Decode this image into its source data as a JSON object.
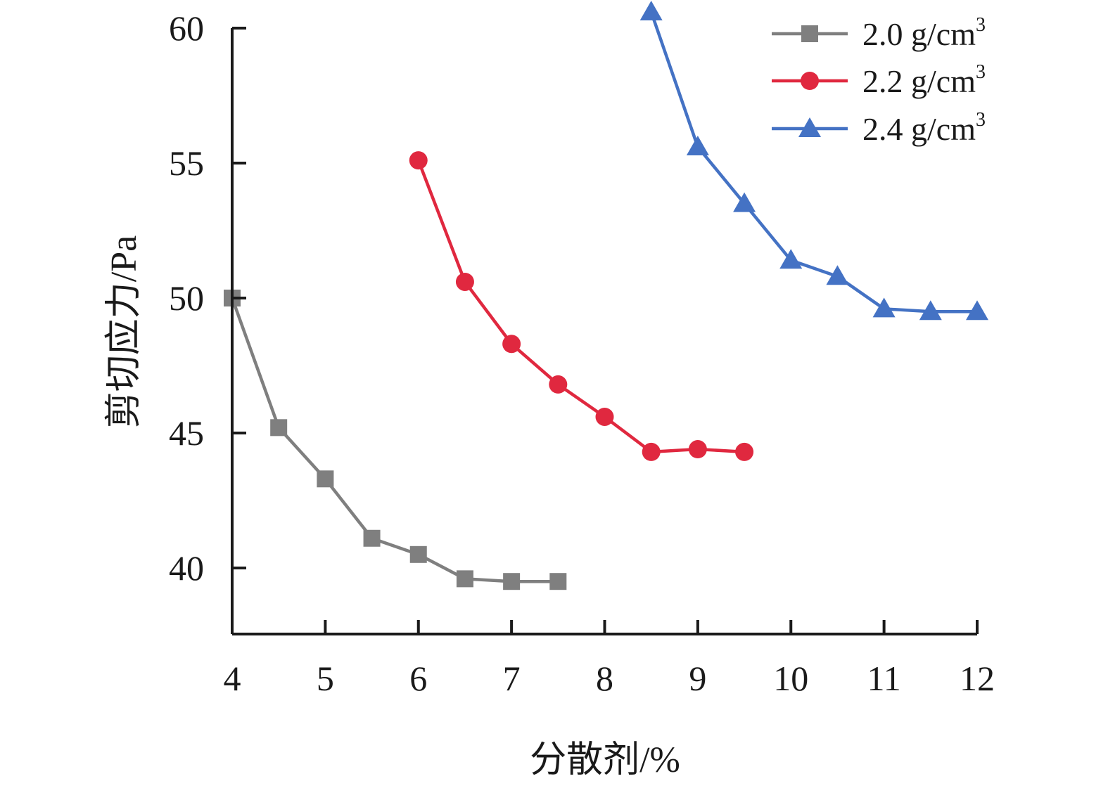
{
  "chart_data": {
    "type": "line",
    "title": "",
    "xlabel": "分散剂/%",
    "ylabel": "剪切应力/Pa",
    "xlim": [
      4,
      12
    ],
    "ylim": [
      37.5,
      60
    ],
    "xticks": [
      4,
      5,
      6,
      7,
      8,
      9,
      10,
      11,
      12
    ],
    "yticks": [
      40,
      45,
      50,
      55,
      60
    ],
    "grid": false,
    "legend_position": "top-right",
    "series": [
      {
        "name": "2.0 g/cm",
        "name_superscript": "3",
        "color": "#7f7f7f",
        "marker": "square",
        "x": [
          4,
          4.5,
          5,
          5.5,
          6,
          6.5,
          7,
          7.5
        ],
        "y": [
          50.0,
          45.2,
          43.3,
          41.1,
          40.5,
          39.6,
          39.5,
          39.5
        ]
      },
      {
        "name": "2.2 g/cm",
        "name_superscript": "3",
        "color": "#e0283f",
        "marker": "circle",
        "x": [
          6,
          6.5,
          7,
          7.5,
          8,
          8.5,
          9,
          9.5
        ],
        "y": [
          55.1,
          50.6,
          48.3,
          46.8,
          45.6,
          44.3,
          44.4,
          44.3
        ]
      },
      {
        "name": "2.4 g/cm",
        "name_superscript": "3",
        "color": "#4472c4",
        "marker": "triangle",
        "x": [
          8.5,
          9,
          9.5,
          10,
          10.5,
          11,
          11.5,
          12
        ],
        "y": [
          60.6,
          55.6,
          53.5,
          51.4,
          50.8,
          49.6,
          49.5,
          49.5
        ]
      }
    ]
  }
}
